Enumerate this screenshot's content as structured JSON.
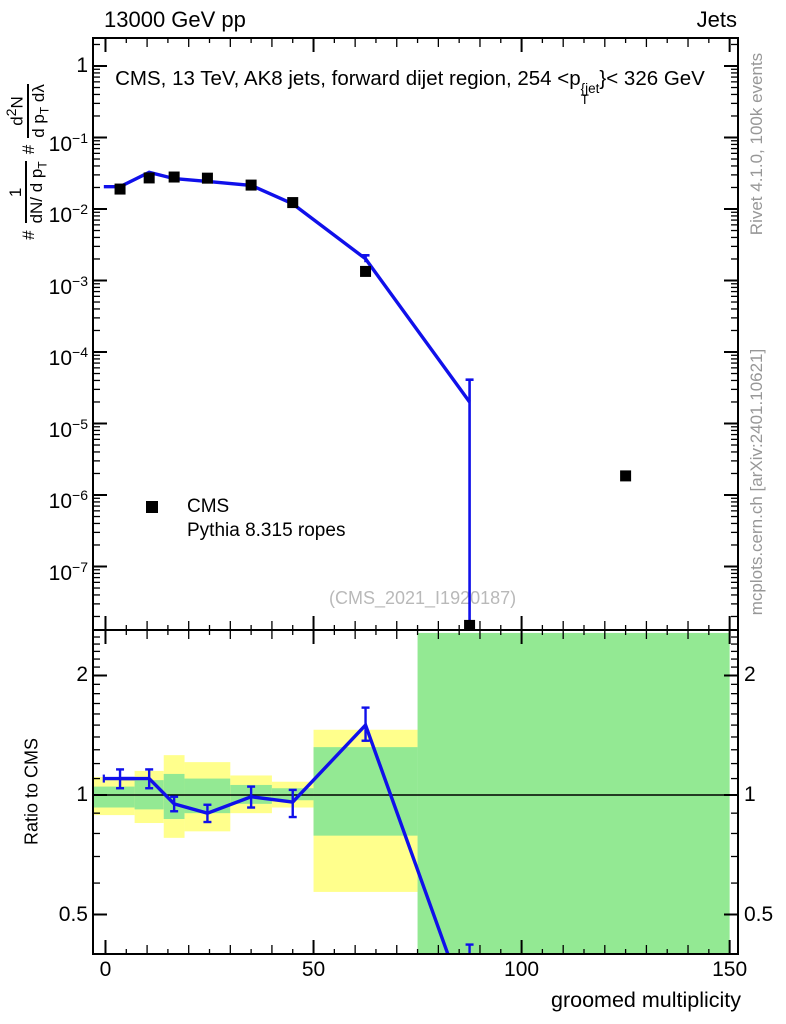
{
  "header": {
    "left": "13000 GeV pp",
    "right": "Jets"
  },
  "title": {
    "prefix": "CMS, 13 TeV, AK8 jets, forward dijet region, 254 <p",
    "sup": "{jet",
    "sub": "T",
    "suffix": "}< 326 GeV"
  },
  "y_axis_label": {
    "hash1": "#",
    "f1_num": "1",
    "f1_den_pre": "dN/ d p",
    "f1_den_sub": "T",
    "hash2": "#",
    "f2_num_pre": "d",
    "f2_num_sup": "2",
    "f2_num_post": "N",
    "f2_den_pre": "d p",
    "f2_den_sub": "T",
    "f2_den_post": " dλ"
  },
  "credits": {
    "right_top": "Rivet 4.1.0, 100k events",
    "right_bottom": "mcplots.cern.ch [arXiv:2401.10621]"
  },
  "watermark": "(CMS_2021_I1920187)",
  "legend": {
    "item1": "CMS",
    "item2": "Pythia 8.315 ropes"
  },
  "colors": {
    "mc_blue": "#1010ea",
    "band_yellow": "#ffff8c",
    "band_green": "#93e993",
    "frame": "#000000",
    "credit_gray": "#979797",
    "watermark_gray": "#b9b9b9"
  },
  "chart_data": {
    "type": "line",
    "title": "CMS, 13 TeV, AK8 jets, forward dijet region, 254 < pT{jet} < 326 GeV",
    "xlabel": "groomed multiplicity",
    "x_range": [
      -3,
      152
    ],
    "x_major_ticks": [
      0,
      50,
      100,
      150
    ],
    "x_tick_steps": {
      "minor": 5,
      "medium": 10,
      "major": 50
    },
    "legend_position": "center-left",
    "main_panel": {
      "y_scale": "log",
      "y_range": [
        1.3e-08,
        2.5
      ],
      "y_tick_exponents": [
        0,
        -1,
        -2,
        -3,
        -4,
        -5,
        -6,
        -7
      ],
      "series": [
        {
          "name": "CMS",
          "type": "scatter",
          "marker": "filled-square",
          "x": [
            3.5,
            10.5,
            16.5,
            24.5,
            35,
            45,
            62.5,
            87.5,
            125
          ],
          "y": [
            0.019,
            0.0272,
            0.028,
            0.027,
            0.0216,
            0.0123,
            0.00134,
            1.5e-08,
            1.85e-06
          ]
        },
        {
          "name": "Pythia 8.315 ropes",
          "type": "line",
          "x": [
            3.5,
            10.5,
            16.5,
            24.5,
            35,
            45,
            62.5,
            87.5
          ],
          "y": [
            0.0205,
            0.0326,
            0.0266,
            0.0243,
            0.0214,
            0.0118,
            0.00201,
            2e-05
          ],
          "stub": {
            "x": [
              -0.4,
              3.5
            ]
          },
          "errors": [
            {
              "x": 62.5,
              "lo": 0.0018,
              "hi": 0.00225
            },
            {
              "x": 87.5,
              "lo": 1.35e-08,
              "hi": 4.1e-05
            }
          ]
        }
      ]
    },
    "ratio_panel": {
      "y_scale": "log",
      "y_range": [
        0.4,
        2.56
      ],
      "y_axis_label": "Ratio to CMS",
      "y_major_ticks": [
        0.5,
        1,
        2
      ],
      "y_minor_tick_step": 0.1,
      "reference_line": 1,
      "bands": [
        {
          "bin": [
            0,
            7
          ],
          "yellow": [
            0.89,
            1.11
          ],
          "green": [
            0.93,
            1.05
          ]
        },
        {
          "bin": [
            7,
            14
          ],
          "yellow": [
            0.85,
            1.15
          ],
          "green": [
            0.92,
            1.09
          ]
        },
        {
          "bin": [
            14,
            19
          ],
          "yellow": [
            0.78,
            1.26
          ],
          "green": [
            0.87,
            1.13
          ]
        },
        {
          "bin": [
            19,
            30
          ],
          "yellow": [
            0.81,
            1.21
          ],
          "green": [
            0.9,
            1.1
          ]
        },
        {
          "bin": [
            30,
            40
          ],
          "yellow": [
            0.9,
            1.12
          ],
          "green": [
            0.95,
            1.06
          ]
        },
        {
          "bin": [
            40,
            50
          ],
          "yellow": [
            0.93,
            1.08
          ],
          "green": [
            0.97,
            1.04
          ]
        },
        {
          "bin": [
            50,
            75
          ],
          "yellow": [
            0.57,
            1.46
          ],
          "green": [
            0.79,
            1.32
          ]
        },
        {
          "bin": [
            75,
            150
          ],
          "yellow": null,
          "green": [
            0.4,
            2.56
          ]
        }
      ],
      "mc_ratio": {
        "x": [
          3.5,
          10.5,
          16.5,
          24.5,
          35,
          45,
          62.5,
          87.5
        ],
        "y": [
          1.1,
          1.1,
          0.95,
          0.9,
          0.99,
          0.96,
          1.5,
          0.28
        ],
        "err_lo": [
          0.06,
          0.06,
          0.04,
          0.045,
          0.06,
          0.08,
          0.13,
          0.0
        ],
        "err_hi": [
          0.06,
          0.06,
          0.04,
          0.045,
          0.06,
          0.07,
          0.16,
          0.14
        ],
        "stub": {
          "x": [
            -0.4,
            7
          ],
          "y": 1.1
        }
      }
    }
  }
}
